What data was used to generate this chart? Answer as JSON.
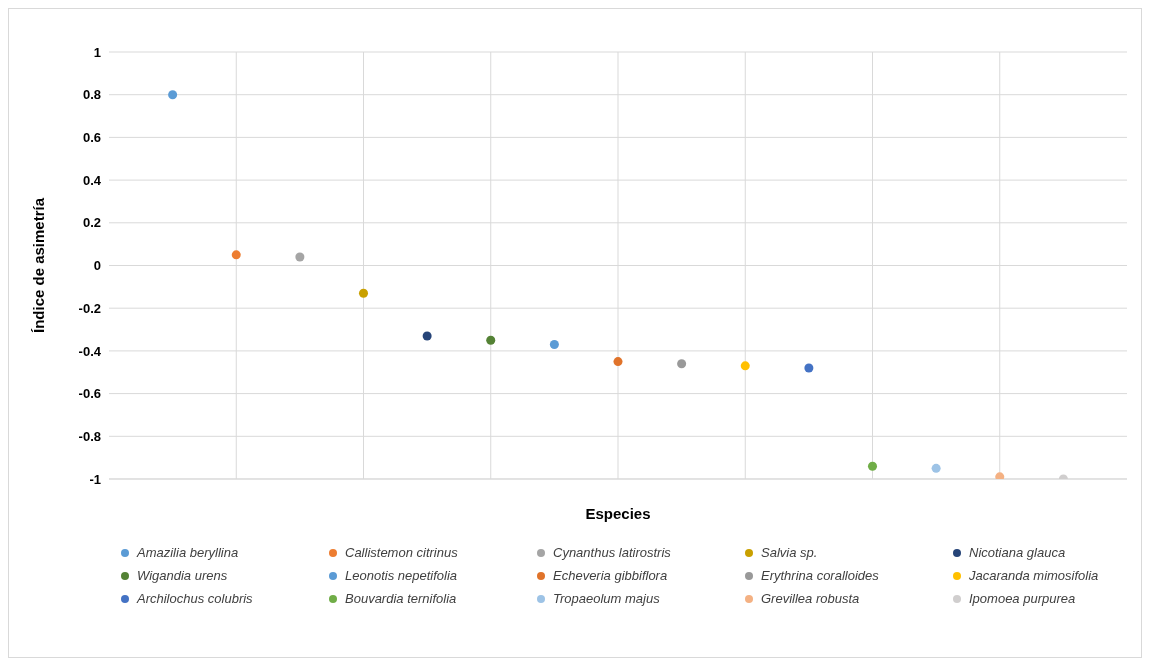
{
  "chart_data": {
    "type": "scatter",
    "xlabel": "Especies",
    "ylabel": "Índice de asimetría",
    "categories": [
      null,
      null,
      null,
      null,
      null,
      null,
      null,
      null,
      null,
      null,
      null,
      null,
      null,
      null,
      null
    ],
    "ylim": [
      -1,
      1
    ],
    "yticks": [
      -1,
      -0.8,
      -0.6,
      -0.4,
      -0.2,
      0,
      0.2,
      0.4,
      0.6,
      0.8,
      1
    ],
    "grid": true,
    "legend": "bottom",
    "marker": "circle",
    "tick_labels": "y",
    "series": [
      {
        "name": "Amazilia beryllina",
        "color": "#5b9bd5",
        "values": [
          0.8,
          null,
          null,
          null,
          null,
          null,
          null,
          null,
          null,
          null,
          null,
          null,
          null,
          null,
          null
        ]
      },
      {
        "name": "Callistemon citrinus",
        "color": "#ed7d31",
        "values": [
          null,
          0.05,
          null,
          null,
          null,
          null,
          null,
          null,
          null,
          null,
          null,
          null,
          null,
          null,
          null
        ]
      },
      {
        "name": "Cynanthus latirostris",
        "color": "#a5a5a5",
        "values": [
          null,
          null,
          0.04,
          null,
          null,
          null,
          null,
          null,
          null,
          null,
          null,
          null,
          null,
          null,
          null
        ]
      },
      {
        "name": "Salvia sp.",
        "color": "#c9a000",
        "values": [
          null,
          null,
          null,
          -0.13,
          null,
          null,
          null,
          null,
          null,
          null,
          null,
          null,
          null,
          null,
          null
        ]
      },
      {
        "name": "Nicotiana glauca",
        "color": "#264478",
        "values": [
          null,
          null,
          null,
          null,
          -0.33,
          null,
          null,
          null,
          null,
          null,
          null,
          null,
          null,
          null,
          null
        ]
      },
      {
        "name": "Wigandia urens",
        "color": "#548235",
        "values": [
          null,
          null,
          null,
          null,
          null,
          -0.35,
          null,
          null,
          null,
          null,
          null,
          null,
          null,
          null,
          null
        ]
      },
      {
        "name": "Leonotis nepetifolia",
        "color": "#5b9bd5",
        "values": [
          null,
          null,
          null,
          null,
          null,
          null,
          -0.37,
          null,
          null,
          null,
          null,
          null,
          null,
          null,
          null
        ]
      },
      {
        "name": "Echeveria gibbiflora",
        "color": "#e0732a",
        "values": [
          null,
          null,
          null,
          null,
          null,
          null,
          null,
          -0.45,
          null,
          null,
          null,
          null,
          null,
          null,
          null
        ]
      },
      {
        "name": "Erythrina coralloides",
        "color": "#999999",
        "values": [
          null,
          null,
          null,
          null,
          null,
          null,
          null,
          null,
          -0.46,
          null,
          null,
          null,
          null,
          null,
          null
        ]
      },
      {
        "name": "Jacaranda mimosifolia",
        "color": "#ffc000",
        "values": [
          null,
          null,
          null,
          null,
          null,
          null,
          null,
          null,
          null,
          -0.47,
          null,
          null,
          null,
          null,
          null
        ]
      },
      {
        "name": "Archilochus colubris",
        "color": "#4472c4",
        "values": [
          null,
          null,
          null,
          null,
          null,
          null,
          null,
          null,
          null,
          null,
          -0.48,
          null,
          null,
          null,
          null
        ]
      },
      {
        "name": "Bouvardia ternifolia",
        "color": "#70ad47",
        "values": [
          null,
          null,
          null,
          null,
          null,
          null,
          null,
          null,
          null,
          null,
          null,
          -0.94,
          null,
          null,
          null
        ]
      },
      {
        "name": "Tropaeolum majus",
        "color": "#9dc3e6",
        "values": [
          null,
          null,
          null,
          null,
          null,
          null,
          null,
          null,
          null,
          null,
          null,
          null,
          -0.95,
          null,
          null
        ]
      },
      {
        "name": "Grevillea robusta",
        "color": "#f4b183",
        "values": [
          null,
          null,
          null,
          null,
          null,
          null,
          null,
          null,
          null,
          null,
          null,
          null,
          null,
          -0.99,
          null
        ]
      },
      {
        "name": "Ipomoea purpurea",
        "color": "#d0cece",
        "values": [
          null,
          null,
          null,
          null,
          null,
          null,
          null,
          null,
          null,
          null,
          null,
          null,
          null,
          null,
          -1
        ]
      }
    ]
  }
}
